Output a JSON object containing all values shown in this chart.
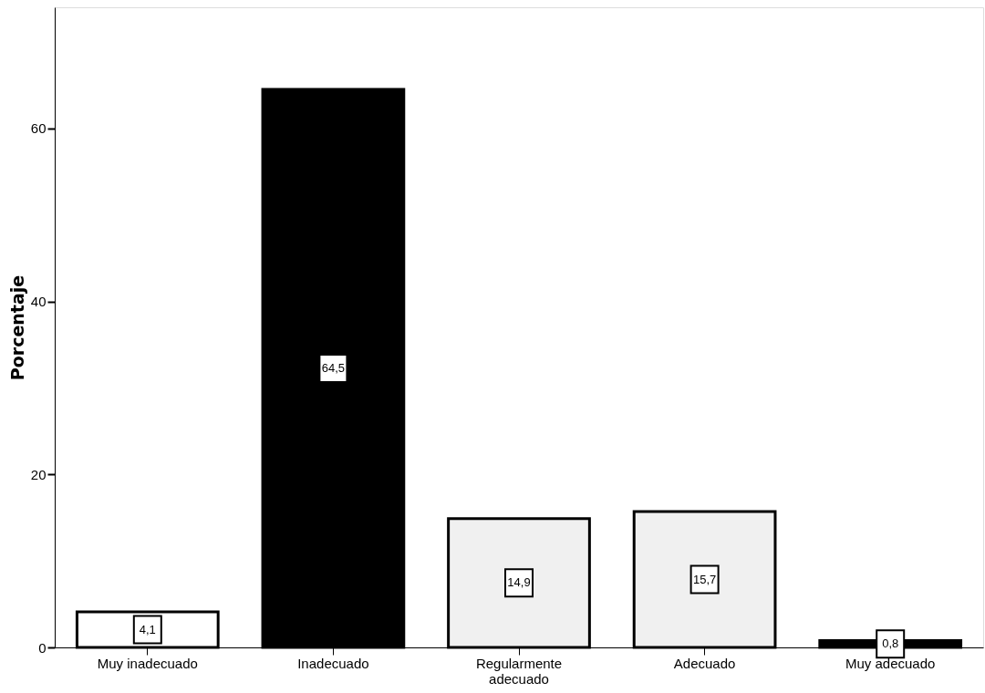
{
  "chart_data": {
    "type": "bar",
    "ylabel": "Porcentaje",
    "categories": [
      "Muy inadecuado",
      "Inadecuado",
      "Regularmente adecuado",
      "Adecuado",
      "Muy adecuado"
    ],
    "values": [
      4.1,
      64.5,
      14.9,
      15.7,
      0.8
    ],
    "colors": [
      "#ffffff",
      "#000000",
      "#f0f0f0",
      "#f0f0f0",
      "#000000"
    ],
    "value_labels": [
      "4,1",
      "64,5",
      "14,9",
      "15,7",
      "0,8"
    ],
    "ylim": [
      0,
      74
    ],
    "yticks": [
      0,
      20,
      40,
      60
    ],
    "grid": false
  }
}
